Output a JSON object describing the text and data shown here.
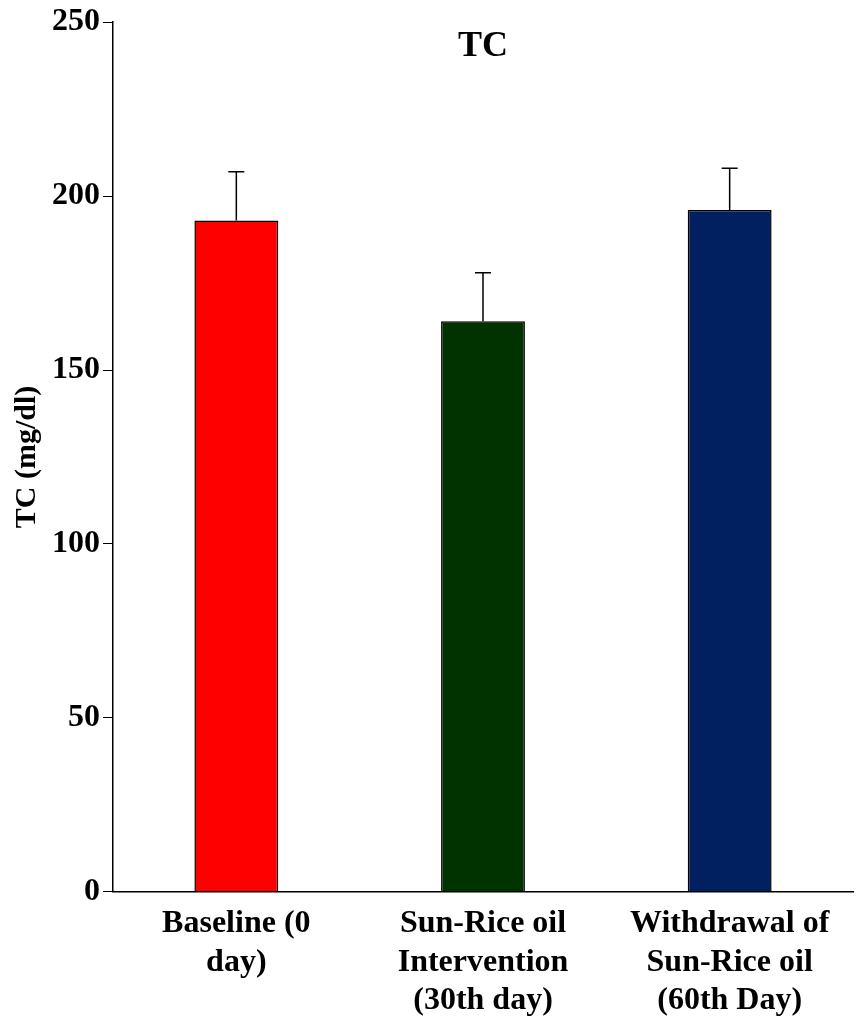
{
  "chart_data": {
    "type": "bar",
    "title": "TC",
    "ylabel": "TC (mg/dl)",
    "categories": [
      "Baseline  (0 day)",
      "Sun-Rice oil Intervention (30th day)",
      "Withdrawal of Sun-Rice oil (60th Day)"
    ],
    "values": [
      193,
      164,
      196
    ],
    "colors": [
      "#ff0000",
      "#003300",
      "#002060"
    ],
    "errors": [
      [
        193,
        207
      ],
      [
        164,
        178
      ],
      [
        196,
        208
      ]
    ],
    "ylim": [
      0,
      250
    ],
    "yticks": [
      0,
      50,
      100,
      150,
      200,
      250
    ],
    "grid": false,
    "legend": false
  }
}
